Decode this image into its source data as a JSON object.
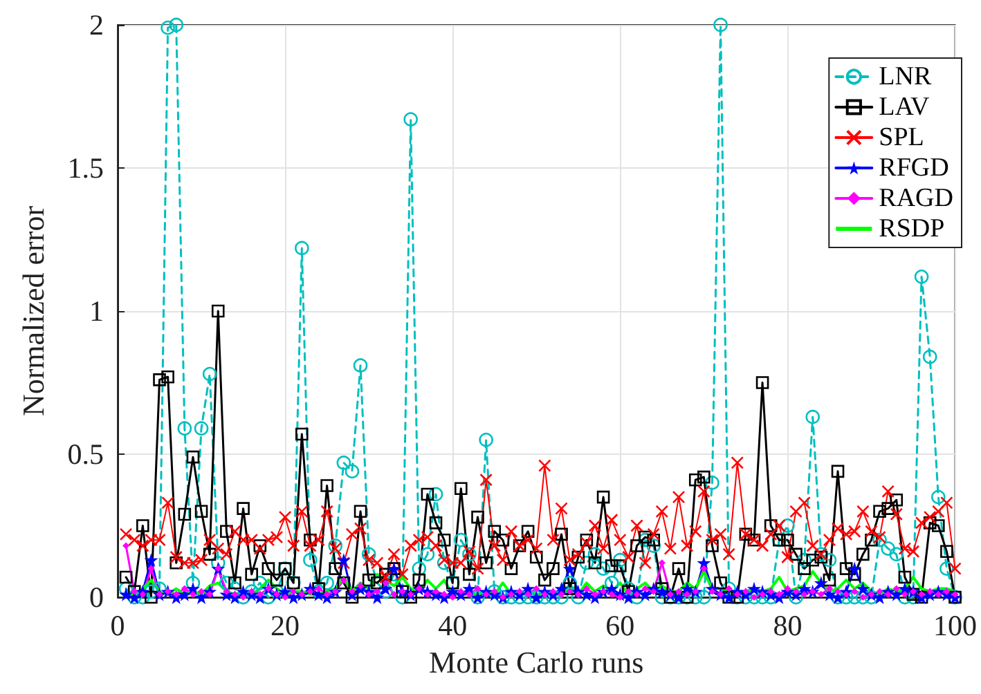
{
  "chart_data": {
    "type": "line",
    "xlabel": "Monte Carlo runs",
    "ylabel": "Normalized error",
    "x": [
      1,
      2,
      3,
      4,
      5,
      6,
      7,
      8,
      9,
      10,
      11,
      12,
      13,
      14,
      15,
      16,
      17,
      18,
      19,
      20,
      21,
      22,
      23,
      24,
      25,
      26,
      27,
      28,
      29,
      30,
      31,
      32,
      33,
      34,
      35,
      36,
      37,
      38,
      39,
      40,
      41,
      42,
      43,
      44,
      45,
      46,
      47,
      48,
      49,
      50,
      51,
      52,
      53,
      54,
      55,
      56,
      57,
      58,
      59,
      60,
      61,
      62,
      63,
      64,
      65,
      66,
      67,
      68,
      69,
      70,
      71,
      72,
      73,
      74,
      75,
      76,
      77,
      78,
      79,
      80,
      81,
      82,
      83,
      84,
      85,
      86,
      87,
      88,
      89,
      90,
      91,
      92,
      93,
      94,
      95,
      96,
      97,
      98,
      99,
      100
    ],
    "series": [
      {
        "name": "LNR",
        "color": "#00bfbf",
        "marker": "circle",
        "line_style": "dashed",
        "values": [
          0.03,
          0,
          0,
          0.02,
          0.03,
          1.99,
          2.0,
          0.59,
          0.05,
          0.59,
          0.78,
          0.12,
          0.05,
          0.03,
          0,
          0.02,
          0.05,
          0,
          0.02,
          0.1,
          0.05,
          1.22,
          0.13,
          0.02,
          0.05,
          0.18,
          0.47,
          0.44,
          0.81,
          0.15,
          0.05,
          0.02,
          0.08,
          0,
          1.67,
          0.1,
          0.15,
          0.36,
          0.12,
          0.05,
          0.2,
          0.15,
          0,
          0.55,
          0.02,
          0,
          0,
          0,
          0,
          0,
          0,
          0,
          0,
          0.05,
          0,
          0.12,
          0.15,
          0.1,
          0.05,
          0.13,
          0.03,
          0,
          0.2,
          0.18,
          0,
          0,
          0,
          0,
          0,
          0,
          0.4,
          2.0,
          0.03,
          0,
          0,
          0,
          0,
          0,
          0.2,
          0.25,
          0,
          0.13,
          0.63,
          0.15,
          0.13,
          0,
          0,
          0,
          0,
          0,
          0.2,
          0.17,
          0.15,
          0,
          0,
          1.12,
          0.84,
          0.35,
          0.1,
          0
        ]
      },
      {
        "name": "LAV",
        "color": "#000000",
        "marker": "square",
        "line_style": "solid",
        "values": [
          0.07,
          0.02,
          0.25,
          0,
          0.76,
          0.77,
          0.12,
          0.29,
          0.49,
          0.3,
          0.15,
          1.0,
          0.23,
          0.05,
          0.31,
          0.08,
          0.18,
          0.1,
          0.06,
          0.1,
          0.05,
          0.57,
          0.2,
          0.03,
          0.39,
          0.1,
          0.05,
          0,
          0.3,
          0.06,
          0.05,
          0.08,
          0.1,
          0.02,
          0,
          0.06,
          0.36,
          0.26,
          0.2,
          0.05,
          0.38,
          0.08,
          0.28,
          0.12,
          0.23,
          0.2,
          0.1,
          0.18,
          0.23,
          0.14,
          0.06,
          0.1,
          0.22,
          0.03,
          0.14,
          0.2,
          0.12,
          0.35,
          0.11,
          0.11,
          0.02,
          0.18,
          0.21,
          0.2,
          0.03,
          0,
          0.1,
          0,
          0.41,
          0.42,
          0.18,
          0.05,
          0,
          0,
          0.22,
          0.2,
          0.75,
          0.25,
          0.2,
          0.2,
          0.15,
          0.1,
          0.13,
          0.14,
          0.06,
          0.44,
          0.1,
          0.08,
          0.15,
          0.2,
          0.3,
          0.31,
          0.34,
          0.07,
          0.01,
          0,
          0.26,
          0.25,
          0.16,
          0
        ]
      },
      {
        "name": "SPL",
        "color": "#ff0000",
        "marker": "cross",
        "line_style": "solid",
        "values": [
          0.22,
          0.2,
          0.18,
          0.2,
          0.2,
          0.33,
          0.14,
          0.12,
          0.12,
          0.13,
          0.2,
          0.17,
          0.15,
          0.23,
          0.2,
          0.2,
          0.17,
          0.2,
          0.21,
          0.28,
          0.18,
          0.3,
          0.18,
          0.2,
          0.3,
          0.17,
          0.12,
          0.22,
          0.24,
          0.13,
          0.12,
          0.07,
          0.15,
          0.08,
          0.18,
          0.2,
          0.21,
          0.18,
          0.13,
          0.12,
          0.12,
          0.16,
          0.1,
          0.41,
          0.18,
          0.13,
          0.23,
          0.18,
          0.2,
          0.17,
          0.46,
          0.2,
          0.31,
          0.13,
          0.15,
          0.19,
          0.25,
          0.17,
          0.27,
          0.2,
          0.14,
          0.25,
          0.12,
          0.22,
          0.3,
          0.17,
          0.35,
          0.18,
          0.23,
          0.37,
          0.2,
          0.22,
          0.15,
          0.47,
          0.22,
          0.2,
          0.18,
          0.22,
          0.25,
          0.14,
          0.3,
          0.33,
          0.18,
          0.15,
          0.2,
          0.24,
          0.22,
          0.23,
          0.3,
          0.23,
          0.21,
          0.37,
          0.29,
          0.17,
          0.16,
          0.26,
          0.28,
          0.3,
          0.33,
          0.1
        ]
      },
      {
        "name": "RFGD",
        "color": "#0000ff",
        "marker": "star",
        "line_style": "solid",
        "values": [
          0.01,
          0,
          0.02,
          0.13,
          0.01,
          0.02,
          0,
          0.01,
          0.03,
          0,
          0.02,
          0.1,
          0.01,
          0,
          0.02,
          0.01,
          0,
          0.03,
          0.01,
          0.02,
          0,
          0.01,
          0.03,
          0.01,
          0,
          0.02,
          0.13,
          0.01,
          0.03,
          0.02,
          0,
          0.03,
          0.1,
          0.02,
          0.01,
          0.03,
          0.02,
          0.01,
          0,
          0.02,
          0.01,
          0.03,
          0,
          0.02,
          0.01,
          0,
          0.02,
          0.01,
          0.03,
          0,
          0.02,
          0.01,
          0.03,
          0.1,
          0.02,
          0.01,
          0,
          0.02,
          0.03,
          0.01,
          0,
          0.02,
          0.01,
          0.03,
          0.02,
          0.01,
          0,
          0.03,
          0.02,
          0.12,
          0.03,
          0.01,
          0,
          0.02,
          0.01,
          0.03,
          0.02,
          0.01,
          0,
          0.02,
          0.01,
          0.03,
          0.02,
          0.05,
          0.01,
          0,
          0.02,
          0.1,
          0.03,
          0.01,
          0,
          0.02,
          0.01,
          0.03,
          0.02,
          0,
          0.01,
          0.02,
          0.01,
          0
        ]
      },
      {
        "name": "RAGD",
        "color": "#ff00ff",
        "marker": "diamond",
        "line_style": "solid",
        "values": [
          0.18,
          0.02,
          0.01,
          0.1,
          0.01,
          0.02,
          0.01,
          0.03,
          0.01,
          0.02,
          0.01,
          0.1,
          0.02,
          0.01,
          0,
          0.02,
          0.01,
          0.03,
          0.01,
          0,
          0.02,
          0.01,
          0.02,
          0.03,
          0.01,
          0.02,
          0.06,
          0.02,
          0.04,
          0.01,
          0.02,
          0.05,
          0.01,
          0.02,
          0.01,
          0.03,
          0.01,
          0.02,
          0.01,
          0,
          0.02,
          0.01,
          0.03,
          0.01,
          0.02,
          0,
          0.01,
          0.02,
          0.01,
          0.03,
          0.01,
          0.02,
          0.01,
          0.02,
          0.01,
          0.03,
          0.01,
          0.02,
          0.01,
          0,
          0.02,
          0.01,
          0.03,
          0.02,
          0.12,
          0.01,
          0.02,
          0.01,
          0.02,
          0.1,
          0.02,
          0.01,
          0.03,
          0.01,
          0.02,
          0,
          0.01,
          0.02,
          0.01,
          0.03,
          0.02,
          0.01,
          0.02,
          0.01,
          0.03,
          0.02,
          0.01,
          0.02,
          0,
          0.01,
          0.02,
          0.01,
          0.03,
          0.01,
          0.02,
          0.01,
          0.02,
          0.01,
          0.02,
          0.01
        ]
      },
      {
        "name": "RSDP",
        "color": "#00ff00",
        "marker": "none",
        "line_style": "solid",
        "values": [
          0.01,
          0.01,
          0.03,
          0.06,
          0.02,
          0.01,
          0.03,
          0.01,
          0.02,
          0.01,
          0.04,
          0.05,
          0.02,
          0.01,
          0.02,
          0.01,
          0.03,
          0.06,
          0.03,
          0.01,
          0.02,
          0.02,
          0.01,
          0.01,
          0.02,
          0.03,
          0.07,
          0.02,
          0.05,
          0.03,
          0.08,
          0.06,
          0.04,
          0.07,
          0.03,
          0.02,
          0.06,
          0.03,
          0.06,
          0.01,
          0.01,
          0.01,
          0.01,
          0.02,
          0.01,
          0.05,
          0.01,
          0.01,
          0.02,
          0.01,
          0.01,
          0.01,
          0.01,
          0.03,
          0.01,
          0.05,
          0.02,
          0.04,
          0.02,
          0.05,
          0.01,
          0.03,
          0.05,
          0.02,
          0.04,
          0.02,
          0.02,
          0.05,
          0.03,
          0.09,
          0.03,
          0.03,
          0.02,
          0.02,
          0.02,
          0.03,
          0.02,
          0.03,
          0.07,
          0.02,
          0.03,
          0.04,
          0.09,
          0.05,
          0.02,
          0.03,
          0.06,
          0.03,
          0.05,
          0.02,
          0.01,
          0.03,
          0.02,
          0.03,
          0.07,
          0.03,
          0.02,
          0.03,
          0.03,
          0.02
        ]
      }
    ],
    "xlim": [
      0,
      100
    ],
    "xticks": [
      0,
      20,
      40,
      60,
      80,
      100
    ],
    "ylim": [
      0,
      2
    ],
    "yticks": [
      0,
      0.5,
      1,
      1.5,
      2
    ],
    "grid": true,
    "legend": "top right"
  }
}
